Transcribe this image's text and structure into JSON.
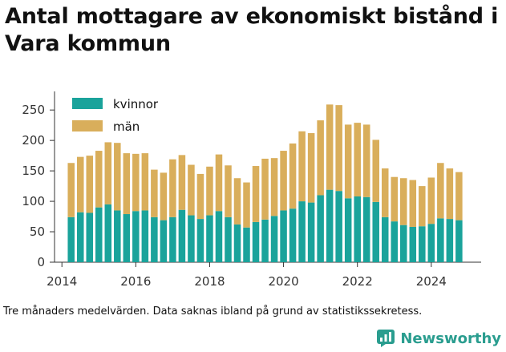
{
  "title": "Antal mottagare av ekonomiskt bistånd i Vara kommun",
  "footnote": "Tre månaders medelvärden. Data saknas ibland på grund av statistikssekretess.",
  "brand": {
    "name": "Newsworthy",
    "logo_icon": "newsworthy-logo-icon"
  },
  "colors": {
    "kvinnor": "#1aa39b",
    "man": "#d9ae5b",
    "axis": "#333333",
    "grid": "#dddddd"
  },
  "chart_data": {
    "type": "bar",
    "stacked": true,
    "xlabel": "",
    "ylabel": "",
    "ylim": [
      0,
      270
    ],
    "yticks": [
      0,
      50,
      100,
      150,
      200,
      250
    ],
    "xticks": [
      "2014",
      "2016",
      "2018",
      "2020",
      "2022",
      "2024"
    ],
    "xlim": [
      2013.8,
      2025.35
    ],
    "legend": "top-left",
    "grid": false,
    "x": [
      2014.25,
      2014.5,
      2014.75,
      2015.0,
      2015.25,
      2015.5,
      2015.75,
      2016.0,
      2016.25,
      2016.5,
      2016.75,
      2017.0,
      2017.25,
      2017.5,
      2017.75,
      2018.0,
      2018.25,
      2018.5,
      2018.75,
      2019.0,
      2019.25,
      2019.5,
      2019.75,
      2020.0,
      2020.25,
      2020.5,
      2020.75,
      2021.0,
      2021.25,
      2021.5,
      2021.75,
      2022.0,
      2022.25,
      2022.5,
      2022.75,
      2023.0,
      2023.25,
      2023.5,
      2023.75,
      2024.0,
      2024.25,
      2024.5,
      2024.75
    ],
    "series": [
      {
        "name": "kvinnor",
        "values": [
          74,
          82,
          81,
          90,
          95,
          85,
          79,
          84,
          85,
          74,
          69,
          74,
          86,
          77,
          71,
          77,
          84,
          74,
          62,
          57,
          66,
          70,
          76,
          85,
          88,
          100,
          98,
          110,
          119,
          117,
          105,
          108,
          107,
          99,
          74,
          67,
          61,
          58,
          59,
          63,
          72,
          71,
          69
        ]
      },
      {
        "name": "män",
        "values": [
          89,
          91,
          94,
          93,
          102,
          111,
          100,
          94,
          94,
          78,
          78,
          95,
          90,
          83,
          74,
          80,
          93,
          85,
          76,
          74,
          92,
          100,
          95,
          98,
          107,
          115,
          114,
          123,
          140,
          141,
          121,
          121,
          119,
          102,
          80,
          73,
          77,
          77,
          66,
          76,
          91,
          83,
          79
        ]
      }
    ]
  }
}
